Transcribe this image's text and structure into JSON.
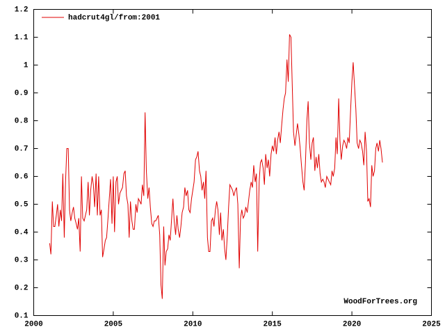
{
  "chart_data": {
    "type": "line",
    "legend": "top-left",
    "annotation": "WoodForTrees.org",
    "xlim": [
      2000,
      2025
    ],
    "xticks": [
      2000,
      2005,
      2010,
      2015,
      2020,
      2025
    ],
    "ylim": [
      0.1,
      1.2
    ],
    "yticks": [
      0.1,
      0.2,
      0.3,
      0.4,
      0.5,
      0.6,
      0.7,
      0.8,
      0.9,
      1,
      1.1,
      1.2
    ],
    "x": [
      2001.0,
      2001.08,
      2001.17,
      2001.25,
      2001.33,
      2001.42,
      2001.5,
      2001.58,
      2001.67,
      2001.75,
      2001.83,
      2001.92,
      2002.0,
      2002.08,
      2002.17,
      2002.25,
      2002.33,
      2002.42,
      2002.5,
      2002.58,
      2002.67,
      2002.75,
      2002.83,
      2002.92,
      2003.0,
      2003.08,
      2003.17,
      2003.25,
      2003.33,
      2003.42,
      2003.5,
      2003.58,
      2003.67,
      2003.75,
      2003.83,
      2003.92,
      2004.0,
      2004.08,
      2004.17,
      2004.25,
      2004.33,
      2004.42,
      2004.5,
      2004.58,
      2004.67,
      2004.75,
      2004.83,
      2004.92,
      2005.0,
      2005.08,
      2005.17,
      2005.25,
      2005.33,
      2005.42,
      2005.5,
      2005.58,
      2005.67,
      2005.75,
      2005.83,
      2005.92,
      2006.0,
      2006.08,
      2006.17,
      2006.25,
      2006.33,
      2006.42,
      2006.5,
      2006.58,
      2006.67,
      2006.75,
      2006.83,
      2006.92,
      2007.0,
      2007.08,
      2007.17,
      2007.25,
      2007.33,
      2007.42,
      2007.5,
      2007.58,
      2007.67,
      2007.75,
      2007.83,
      2007.92,
      2008.0,
      2008.08,
      2008.17,
      2008.25,
      2008.33,
      2008.42,
      2008.5,
      2008.58,
      2008.67,
      2008.75,
      2008.83,
      2008.92,
      2009.0,
      2009.08,
      2009.17,
      2009.25,
      2009.33,
      2009.42,
      2009.5,
      2009.58,
      2009.67,
      2009.75,
      2009.83,
      2009.92,
      2010.0,
      2010.08,
      2010.17,
      2010.25,
      2010.33,
      2010.42,
      2010.5,
      2010.58,
      2010.67,
      2010.75,
      2010.83,
      2010.92,
      2011.0,
      2011.08,
      2011.17,
      2011.25,
      2011.33,
      2011.42,
      2011.5,
      2011.58,
      2011.67,
      2011.75,
      2011.83,
      2011.92,
      2012.0,
      2012.08,
      2012.17,
      2012.25,
      2012.33,
      2012.42,
      2012.5,
      2012.58,
      2012.67,
      2012.75,
      2012.83,
      2012.92,
      2013.0,
      2013.08,
      2013.17,
      2013.25,
      2013.33,
      2013.42,
      2013.5,
      2013.58,
      2013.67,
      2013.75,
      2013.83,
      2013.92,
      2014.0,
      2014.08,
      2014.17,
      2014.25,
      2014.33,
      2014.42,
      2014.5,
      2014.58,
      2014.67,
      2014.75,
      2014.83,
      2014.92,
      2015.0,
      2015.08,
      2015.17,
      2015.25,
      2015.33,
      2015.42,
      2015.5,
      2015.58,
      2015.67,
      2015.75,
      2015.83,
      2015.92,
      2016.0,
      2016.08,
      2016.17,
      2016.25,
      2016.33,
      2016.42,
      2016.5,
      2016.58,
      2016.67,
      2016.75,
      2016.83,
      2016.92,
      2017.0,
      2017.08,
      2017.17,
      2017.25,
      2017.33,
      2017.42,
      2017.5,
      2017.58,
      2017.67,
      2017.75,
      2017.83,
      2017.92,
      2018.0,
      2018.08,
      2018.17,
      2018.25,
      2018.33,
      2018.42,
      2018.5,
      2018.58,
      2018.67,
      2018.75,
      2018.83,
      2018.92,
      2019.0,
      2019.08,
      2019.17,
      2019.25,
      2019.33,
      2019.42,
      2019.5,
      2019.58,
      2019.67,
      2019.75,
      2019.83,
      2019.92,
      2020.0,
      2020.08,
      2020.17,
      2020.25,
      2020.33,
      2020.42,
      2020.5,
      2020.58,
      2020.67,
      2020.75,
      2020.83,
      2020.92,
      2021.0,
      2021.08,
      2021.17,
      2021.25,
      2021.33,
      2021.42,
      2021.5,
      2021.58,
      2021.67,
      2021.75,
      2021.83,
      2021.92
    ],
    "series": [
      {
        "name": "hadcrut4gl/from:2001",
        "color": "#e00000",
        "values": [
          0.36,
          0.32,
          0.51,
          0.42,
          0.42,
          0.46,
          0.5,
          0.42,
          0.48,
          0.44,
          0.61,
          0.38,
          0.58,
          0.7,
          0.7,
          0.48,
          0.44,
          0.47,
          0.49,
          0.45,
          0.43,
          0.41,
          0.45,
          0.33,
          0.6,
          0.45,
          0.44,
          0.46,
          0.48,
          0.58,
          0.46,
          0.55,
          0.6,
          0.57,
          0.49,
          0.61,
          0.46,
          0.6,
          0.46,
          0.48,
          0.31,
          0.34,
          0.37,
          0.38,
          0.45,
          0.52,
          0.59,
          0.43,
          0.6,
          0.4,
          0.58,
          0.6,
          0.5,
          0.54,
          0.55,
          0.56,
          0.61,
          0.62,
          0.53,
          0.5,
          0.38,
          0.51,
          0.44,
          0.41,
          0.41,
          0.5,
          0.47,
          0.52,
          0.51,
          0.5,
          0.57,
          0.53,
          0.83,
          0.62,
          0.52,
          0.56,
          0.49,
          0.43,
          0.42,
          0.44,
          0.44,
          0.45,
          0.46,
          0.39,
          0.21,
          0.16,
          0.42,
          0.28,
          0.33,
          0.34,
          0.39,
          0.37,
          0.45,
          0.52,
          0.44,
          0.39,
          0.46,
          0.41,
          0.38,
          0.42,
          0.47,
          0.49,
          0.56,
          0.53,
          0.55,
          0.48,
          0.47,
          0.52,
          0.55,
          0.58,
          0.66,
          0.67,
          0.69,
          0.62,
          0.6,
          0.55,
          0.58,
          0.52,
          0.62,
          0.38,
          0.33,
          0.33,
          0.44,
          0.45,
          0.42,
          0.48,
          0.51,
          0.48,
          0.39,
          0.47,
          0.37,
          0.41,
          0.34,
          0.3,
          0.39,
          0.49,
          0.57,
          0.56,
          0.55,
          0.53,
          0.55,
          0.56,
          0.5,
          0.27,
          0.45,
          0.48,
          0.45,
          0.46,
          0.49,
          0.47,
          0.51,
          0.55,
          0.58,
          0.56,
          0.64,
          0.58,
          0.61,
          0.33,
          0.58,
          0.65,
          0.66,
          0.63,
          0.57,
          0.68,
          0.63,
          0.66,
          0.6,
          0.68,
          0.71,
          0.69,
          0.74,
          0.68,
          0.73,
          0.76,
          0.72,
          0.78,
          0.84,
          0.88,
          0.9,
          1.02,
          0.94,
          1.11,
          1.1,
          0.93,
          0.76,
          0.71,
          0.75,
          0.79,
          0.75,
          0.7,
          0.64,
          0.58,
          0.55,
          0.65,
          0.8,
          0.87,
          0.72,
          0.66,
          0.72,
          0.74,
          0.62,
          0.67,
          0.63,
          0.68,
          0.61,
          0.58,
          0.59,
          0.58,
          0.56,
          0.6,
          0.59,
          0.58,
          0.57,
          0.62,
          0.6,
          0.63,
          0.74,
          0.68,
          0.88,
          0.73,
          0.66,
          0.71,
          0.73,
          0.72,
          0.7,
          0.74,
          0.72,
          0.84,
          0.94,
          1.01,
          0.92,
          0.84,
          0.72,
          0.7,
          0.73,
          0.72,
          0.69,
          0.64,
          0.76,
          0.69,
          0.51,
          0.52,
          0.49,
          0.64,
          0.6,
          0.62,
          0.7,
          0.72,
          0.69,
          0.73,
          0.7,
          0.65
        ]
      }
    ]
  }
}
